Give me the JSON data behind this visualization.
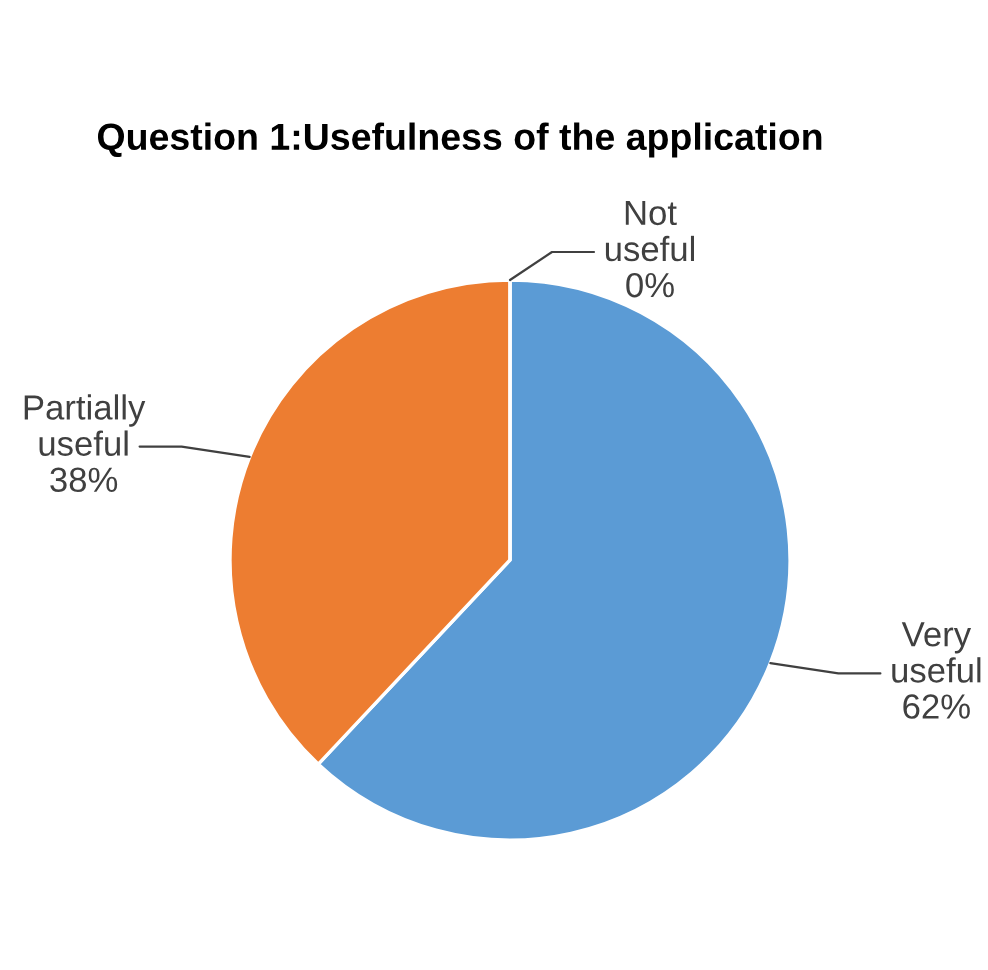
{
  "chart_data": {
    "type": "pie",
    "title": "Question 1:Usefulness of the application",
    "categories": [
      "Very useful",
      "Partially useful",
      "Not useful"
    ],
    "values": [
      62,
      38,
      0
    ],
    "colors": [
      "#5b9bd5",
      "#ed7d31",
      "#a5a5a5"
    ],
    "value_labels": [
      "62%",
      "38%",
      "0%"
    ],
    "legend": false
  }
}
